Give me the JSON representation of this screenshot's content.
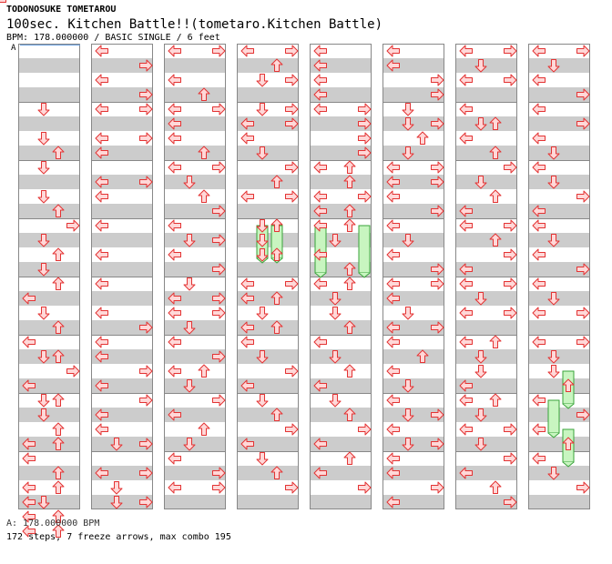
{
  "song": {
    "artist": "TODONOSUKE TOMETAROU",
    "title": "100sec. Kitchen Battle!!(tometaro.Kitchen Battle)",
    "info": "BPM: 178.000000 / BASIC SINGLE / 6 feet"
  },
  "chart": {
    "bpm_marker": "A",
    "colors": {
      "band": "#cccccc",
      "border": "#888888",
      "arrow_fill": "#ffd8d8",
      "arrow_stroke": "#e33333",
      "freeze_fill": "#c8f5c0",
      "freeze_stroke": "#39a33a",
      "marker_line": "#6aa0e0"
    },
    "lanes": [
      "left",
      "down",
      "up",
      "right"
    ],
    "columns": [
      {
        "notes": [
          [
            4,
            1
          ],
          [
            6,
            1
          ],
          [
            7,
            2
          ],
          [
            8,
            1
          ],
          [
            10,
            1
          ],
          [
            11,
            2
          ],
          [
            12,
            3
          ],
          [
            13,
            1
          ],
          [
            14,
            2
          ],
          [
            14,
            4
          ],
          [
            15,
            1
          ],
          [
            16,
            2
          ],
          [
            17,
            0
          ],
          [
            18,
            1
          ],
          [
            19,
            2
          ],
          [
            20,
            0
          ],
          [
            21,
            1
          ],
          [
            21,
            2
          ],
          [
            22,
            3
          ],
          [
            23,
            0
          ],
          [
            24,
            1
          ],
          [
            24,
            2
          ],
          [
            25,
            1
          ],
          [
            26,
            2
          ],
          [
            27,
            0
          ],
          [
            27,
            2
          ],
          [
            28,
            0
          ],
          [
            29,
            2
          ],
          [
            30,
            0
          ],
          [
            30,
            2
          ],
          [
            31,
            0
          ],
          [
            31,
            1
          ],
          [
            32,
            0
          ],
          [
            32,
            2
          ],
          [
            33,
            0
          ],
          [
            33,
            2
          ]
        ],
        "freezes": []
      },
      {
        "notes": [
          [
            0,
            0
          ],
          [
            1,
            3
          ],
          [
            2,
            0
          ],
          [
            3,
            3
          ],
          [
            4,
            0
          ],
          [
            4,
            3
          ],
          [
            6,
            0
          ],
          [
            6,
            3
          ],
          [
            7,
            0
          ],
          [
            9,
            0
          ],
          [
            9,
            3
          ],
          [
            10,
            0
          ],
          [
            12,
            0
          ],
          [
            14,
            0
          ],
          [
            16,
            0
          ],
          [
            18,
            0
          ],
          [
            19,
            3
          ],
          [
            20,
            0
          ],
          [
            21,
            0
          ],
          [
            22,
            3
          ],
          [
            23,
            0
          ],
          [
            24,
            3
          ],
          [
            25,
            0
          ],
          [
            26,
            0
          ],
          [
            27,
            1
          ],
          [
            27,
            3
          ],
          [
            29,
            0
          ],
          [
            29,
            3
          ],
          [
            30,
            1
          ],
          [
            31,
            1
          ],
          [
            31,
            3
          ]
        ],
        "freezes": []
      },
      {
        "notes": [
          [
            0,
            0
          ],
          [
            0,
            3
          ],
          [
            2,
            0
          ],
          [
            3,
            2
          ],
          [
            4,
            0
          ],
          [
            4,
            3
          ],
          [
            5,
            0
          ],
          [
            6,
            0
          ],
          [
            7,
            2
          ],
          [
            8,
            0
          ],
          [
            8,
            3
          ],
          [
            9,
            1
          ],
          [
            10,
            2
          ],
          [
            11,
            3
          ],
          [
            12,
            0
          ],
          [
            13,
            1
          ],
          [
            13,
            3
          ],
          [
            14,
            0
          ],
          [
            15,
            3
          ],
          [
            16,
            1
          ],
          [
            17,
            0
          ],
          [
            17,
            3
          ],
          [
            18,
            0
          ],
          [
            18,
            3
          ],
          [
            19,
            1
          ],
          [
            20,
            0
          ],
          [
            21,
            3
          ],
          [
            22,
            0
          ],
          [
            22,
            2
          ],
          [
            23,
            1
          ],
          [
            24,
            3
          ],
          [
            25,
            0
          ],
          [
            26,
            2
          ],
          [
            27,
            1
          ],
          [
            28,
            0
          ],
          [
            29,
            3
          ],
          [
            30,
            0
          ],
          [
            30,
            3
          ]
        ],
        "freezes": []
      },
      {
        "notes": [
          [
            0,
            0
          ],
          [
            0,
            3
          ],
          [
            1,
            2
          ],
          [
            2,
            1
          ],
          [
            2,
            3
          ],
          [
            4,
            1
          ],
          [
            4,
            3
          ],
          [
            5,
            0
          ],
          [
            5,
            3
          ],
          [
            6,
            0
          ],
          [
            7,
            1
          ],
          [
            8,
            3
          ],
          [
            9,
            2
          ],
          [
            10,
            0
          ],
          [
            10,
            3
          ],
          [
            12,
            1
          ],
          [
            12,
            2
          ],
          [
            13,
            1
          ],
          [
            14,
            1
          ],
          [
            14,
            2
          ],
          [
            16,
            0
          ],
          [
            16,
            3
          ],
          [
            17,
            0
          ],
          [
            17,
            2
          ],
          [
            18,
            1
          ],
          [
            19,
            0
          ],
          [
            19,
            2
          ],
          [
            20,
            0
          ],
          [
            21,
            1
          ],
          [
            22,
            3
          ],
          [
            23,
            0
          ],
          [
            24,
            1
          ],
          [
            25,
            2
          ],
          [
            26,
            3
          ],
          [
            27,
            0
          ],
          [
            28,
            1
          ],
          [
            29,
            2
          ],
          [
            30,
            3
          ]
        ],
        "freezes": [
          [
            12,
            1,
            14
          ],
          [
            12,
            2,
            14
          ]
        ]
      },
      {
        "notes": [
          [
            0,
            0
          ],
          [
            1,
            0
          ],
          [
            2,
            0
          ],
          [
            3,
            0
          ],
          [
            4,
            0
          ],
          [
            4,
            3
          ],
          [
            5,
            3
          ],
          [
            6,
            3
          ],
          [
            7,
            3
          ],
          [
            8,
            0
          ],
          [
            8,
            2
          ],
          [
            9,
            2
          ],
          [
            10,
            0
          ],
          [
            10,
            3
          ],
          [
            11,
            0
          ],
          [
            11,
            2
          ],
          [
            12,
            0
          ],
          [
            12,
            2
          ],
          [
            13,
            1
          ],
          [
            14,
            0
          ],
          [
            15,
            2
          ],
          [
            16,
            0
          ],
          [
            16,
            2
          ],
          [
            17,
            1
          ],
          [
            18,
            1
          ],
          [
            19,
            2
          ],
          [
            20,
            0
          ],
          [
            21,
            1
          ],
          [
            22,
            2
          ],
          [
            23,
            0
          ],
          [
            24,
            1
          ],
          [
            25,
            2
          ],
          [
            26,
            3
          ],
          [
            27,
            0
          ],
          [
            28,
            2
          ],
          [
            29,
            0
          ],
          [
            30,
            3
          ]
        ],
        "freezes": [
          [
            12,
            0,
            15
          ],
          [
            12,
            3,
            15
          ]
        ]
      },
      {
        "notes": [
          [
            0,
            0
          ],
          [
            1,
            0
          ],
          [
            2,
            3
          ],
          [
            3,
            3
          ],
          [
            4,
            1
          ],
          [
            5,
            1
          ],
          [
            5,
            3
          ],
          [
            6,
            2
          ],
          [
            7,
            1
          ],
          [
            8,
            0
          ],
          [
            8,
            3
          ],
          [
            9,
            0
          ],
          [
            9,
            3
          ],
          [
            10,
            0
          ],
          [
            11,
            3
          ],
          [
            12,
            0
          ],
          [
            13,
            1
          ],
          [
            14,
            0
          ],
          [
            15,
            3
          ],
          [
            16,
            0
          ],
          [
            16,
            3
          ],
          [
            17,
            0
          ],
          [
            18,
            1
          ],
          [
            19,
            0
          ],
          [
            19,
            3
          ],
          [
            20,
            0
          ],
          [
            21,
            2
          ],
          [
            22,
            0
          ],
          [
            23,
            1
          ],
          [
            24,
            0
          ],
          [
            25,
            1
          ],
          [
            25,
            3
          ],
          [
            26,
            0
          ],
          [
            27,
            1
          ],
          [
            27,
            3
          ],
          [
            28,
            0
          ],
          [
            29,
            0
          ],
          [
            30,
            3
          ],
          [
            31,
            0
          ]
        ],
        "freezes": []
      },
      {
        "notes": [
          [
            0,
            0
          ],
          [
            0,
            3
          ],
          [
            1,
            1
          ],
          [
            2,
            0
          ],
          [
            2,
            3
          ],
          [
            4,
            0
          ],
          [
            5,
            1
          ],
          [
            5,
            2
          ],
          [
            6,
            0
          ],
          [
            7,
            2
          ],
          [
            8,
            3
          ],
          [
            9,
            1
          ],
          [
            10,
            2
          ],
          [
            11,
            0
          ],
          [
            12,
            0
          ],
          [
            12,
            3
          ],
          [
            13,
            2
          ],
          [
            14,
            3
          ],
          [
            15,
            0
          ],
          [
            16,
            0
          ],
          [
            16,
            3
          ],
          [
            17,
            1
          ],
          [
            18,
            0
          ],
          [
            18,
            3
          ],
          [
            20,
            0
          ],
          [
            20,
            2
          ],
          [
            21,
            1
          ],
          [
            22,
            1
          ],
          [
            23,
            0
          ],
          [
            24,
            0
          ],
          [
            24,
            2
          ],
          [
            25,
            1
          ],
          [
            26,
            0
          ],
          [
            26,
            3
          ],
          [
            27,
            1
          ],
          [
            28,
            3
          ],
          [
            29,
            0
          ],
          [
            30,
            2
          ],
          [
            31,
            3
          ]
        ],
        "freezes": []
      },
      {
        "notes": [
          [
            0,
            0
          ],
          [
            0,
            3
          ],
          [
            1,
            1
          ],
          [
            2,
            0
          ],
          [
            3,
            3
          ],
          [
            4,
            0
          ],
          [
            5,
            3
          ],
          [
            6,
            0
          ],
          [
            7,
            1
          ],
          [
            8,
            0
          ],
          [
            9,
            1
          ],
          [
            10,
            3
          ],
          [
            11,
            0
          ],
          [
            12,
            0
          ],
          [
            13,
            1
          ],
          [
            14,
            0
          ],
          [
            15,
            3
          ],
          [
            16,
            0
          ],
          [
            17,
            1
          ],
          [
            18,
            0
          ],
          [
            18,
            3
          ],
          [
            20,
            0
          ],
          [
            20,
            3
          ],
          [
            21,
            1
          ],
          [
            22,
            1
          ],
          [
            23,
            2
          ],
          [
            24,
            0
          ],
          [
            25,
            3
          ],
          [
            26,
            0
          ],
          [
            27,
            2
          ],
          [
            28,
            0
          ],
          [
            29,
            1
          ],
          [
            30,
            3
          ]
        ],
        "freezes": [
          [
            22,
            2,
            24
          ],
          [
            24,
            1,
            26
          ],
          [
            26,
            2,
            28
          ]
        ]
      }
    ]
  },
  "legend": "A: 178.000000 BPM",
  "stats": "172 steps, 7 freeze arrows, max combo 195"
}
